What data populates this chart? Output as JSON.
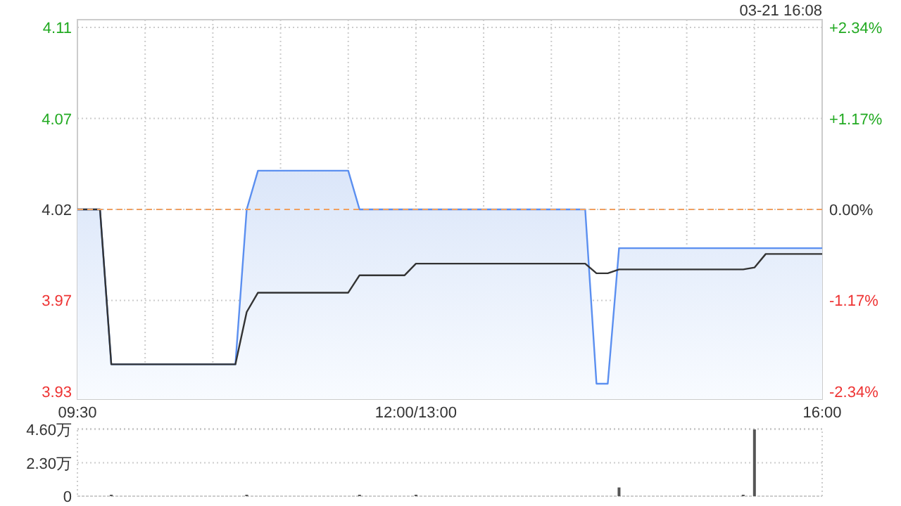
{
  "chart_data": [
    {
      "type": "line",
      "subtitle": "03-21 16:08",
      "grid": true,
      "categories": [
        "09:30",
        null,
        null,
        null,
        null,
        null,
        null,
        null,
        null,
        null,
        null,
        null,
        null,
        null,
        null,
        null,
        null,
        null,
        null,
        null,
        null,
        null,
        null,
        null,
        null,
        null,
        null,
        null,
        null,
        null,
        "12:00/13:00",
        null,
        null,
        null,
        null,
        null,
        null,
        null,
        null,
        null,
        null,
        null,
        null,
        null,
        null,
        null,
        null,
        null,
        null,
        null,
        null,
        null,
        null,
        null,
        null,
        null,
        null,
        null,
        null,
        null,
        null,
        null,
        null,
        null,
        null,
        null,
        "16:00"
      ],
      "ylim": [
        3.922,
        4.118
      ],
      "yticks": [
        {
          "value": 3.926,
          "label": "3.93"
        },
        {
          "value": 3.973,
          "label": "3.97"
        },
        {
          "value": 4.02,
          "label": "4.02"
        },
        {
          "value": 4.067,
          "label": "4.07"
        },
        {
          "value": 4.114,
          "label": "4.11"
        }
      ],
      "y2lim": [
        -2.44,
        2.44
      ],
      "y2ticks": [
        {
          "value": -2.34,
          "label": "-2.34%"
        },
        {
          "value": -1.17,
          "label": "-1.17%"
        },
        {
          "value": 0,
          "label": "0.00%"
        },
        {
          "value": 1.17,
          "label": "+1.17%"
        },
        {
          "value": 2.34,
          "label": "+2.34%"
        }
      ],
      "ref_lines": [
        {
          "axis": "y",
          "value": 4.02,
          "color": "#f0a060",
          "line_style": "dashed"
        }
      ],
      "series": [
        {
          "type": "area",
          "color": "#5b8ff0",
          "values": [
            4.02,
            4.02,
            4.02,
            3.94,
            3.94,
            3.94,
            3.94,
            3.94,
            3.94,
            3.94,
            3.94,
            3.94,
            3.94,
            3.94,
            3.94,
            4.02,
            4.04,
            4.04,
            4.04,
            4.04,
            4.04,
            4.04,
            4.04,
            4.04,
            4.04,
            4.02,
            4.02,
            4.02,
            4.02,
            4.02,
            4.02,
            4.02,
            4.02,
            4.02,
            4.02,
            4.02,
            4.02,
            4.02,
            4.02,
            4.02,
            4.02,
            4.02,
            4.02,
            4.02,
            4.02,
            4.02,
            3.93,
            3.93,
            4.0,
            4.0,
            4.0,
            4.0,
            4.0,
            4.0,
            4.0,
            4.0,
            4.0,
            4.0,
            4.0,
            4.0,
            4.0,
            4.0,
            4.0,
            4.0,
            4.0,
            4.0,
            4.0
          ]
        },
        {
          "type": "line",
          "color": "#333333",
          "values": [
            4.02,
            4.02,
            4.02,
            3.94,
            3.94,
            3.94,
            3.94,
            3.94,
            3.94,
            3.94,
            3.94,
            3.94,
            3.94,
            3.94,
            3.94,
            3.967,
            3.977,
            3.977,
            3.977,
            3.977,
            3.977,
            3.977,
            3.977,
            3.977,
            3.977,
            3.986,
            3.986,
            3.986,
            3.986,
            3.986,
            3.992,
            3.992,
            3.992,
            3.992,
            3.992,
            3.992,
            3.992,
            3.992,
            3.992,
            3.992,
            3.992,
            3.992,
            3.992,
            3.992,
            3.992,
            3.992,
            3.987,
            3.987,
            3.989,
            3.989,
            3.989,
            3.989,
            3.989,
            3.989,
            3.989,
            3.989,
            3.989,
            3.989,
            3.989,
            3.989,
            3.99,
            3.997,
            3.997,
            3.997,
            3.997,
            3.997,
            3.997
          ]
        }
      ]
    },
    {
      "type": "bar",
      "grid": "y",
      "tick_labels": "y",
      "color": "#555555",
      "categories": [
        null,
        null,
        null,
        null,
        null,
        null,
        null,
        null,
        null,
        null,
        null,
        null,
        null,
        null,
        null,
        null,
        null,
        null,
        null,
        null,
        null,
        null,
        null,
        null,
        null,
        null,
        null,
        null,
        null,
        null,
        null,
        null,
        null,
        null,
        null,
        null,
        null,
        null,
        null,
        null,
        null,
        null,
        null,
        null,
        null,
        null,
        null,
        null,
        null,
        null,
        null,
        null,
        null,
        null,
        null,
        null,
        null,
        null,
        null,
        null,
        null,
        null,
        null,
        null,
        null,
        null,
        null
      ],
      "ylim": [
        0,
        4.65
      ],
      "yticks": [
        0,
        {
          "value": 2.3,
          "label": "2.30万"
        },
        {
          "value": 4.6,
          "label": "4.60万"
        }
      ],
      "values": [
        0,
        0,
        0,
        0.1,
        0,
        0,
        0,
        0,
        0,
        0,
        0,
        0,
        0,
        0,
        0,
        0.1,
        0,
        0,
        0,
        0,
        0,
        0,
        0,
        0,
        0,
        0.1,
        0,
        0,
        0,
        0,
        0.1,
        0,
        0,
        0,
        0,
        0,
        0,
        0,
        0,
        0,
        0,
        0,
        0,
        0,
        0,
        0,
        0,
        0,
        0.6,
        0,
        0,
        0,
        0,
        0,
        0,
        0,
        0,
        0,
        0,
        0.1,
        4.6,
        0,
        0,
        0,
        0,
        0,
        0
      ]
    }
  ]
}
